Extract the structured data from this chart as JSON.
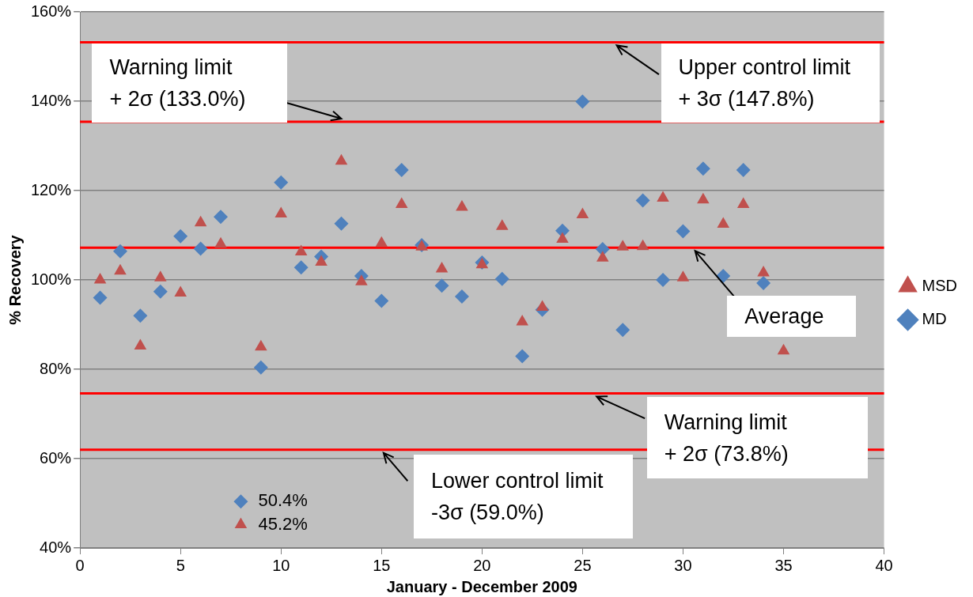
{
  "chart_data": {
    "type": "scatter",
    "xlabel": "January - December 2009",
    "ylabel": "% Recovery",
    "x": [
      1,
      2,
      3,
      4,
      5,
      6,
      7,
      8,
      9,
      10,
      11,
      12,
      13,
      14,
      15,
      16,
      17,
      18,
      19,
      20,
      21,
      22,
      23,
      24,
      25,
      26,
      27,
      28,
      29,
      30,
      31,
      32,
      33,
      34,
      35
    ],
    "series": [
      {
        "name": "MD",
        "color": "#4f81bd",
        "marker": "diamond",
        "values": [
          96.0,
          106.4,
          92.0,
          97.4,
          109.8,
          107.0,
          114.1,
          50.4,
          80.4,
          121.8,
          102.8,
          105.2,
          112.6,
          100.9,
          95.3,
          124.6,
          107.8,
          98.7,
          96.3,
          103.9,
          100.2,
          82.9,
          93.3,
          111.0,
          139.9,
          106.9,
          88.8,
          117.8,
          100.0,
          110.9,
          124.9,
          100.9,
          124.6,
          99.3,
          null
        ],
        "value_labels": [
          null,
          null,
          null,
          null,
          null,
          null,
          null,
          "50.4%",
          null,
          null,
          null,
          null,
          null,
          null,
          null,
          null,
          null,
          null,
          null,
          null,
          null,
          null,
          null,
          null,
          null,
          null,
          null,
          null,
          null,
          null,
          null,
          null,
          null,
          null,
          null
        ]
      },
      {
        "name": "MSD",
        "color": "#c0504d",
        "marker": "triangle",
        "values": [
          100.0,
          102.0,
          85.2,
          100.5,
          97.1,
          112.8,
          108.0,
          45.2,
          85.0,
          114.8,
          106.3,
          104.0,
          126.6,
          99.6,
          108.2,
          116.9,
          107.4,
          102.5,
          116.3,
          103.4,
          112.0,
          90.6,
          93.9,
          109.1,
          114.6,
          104.9,
          107.4,
          107.5,
          118.3,
          100.5,
          117.9,
          112.5,
          116.9,
          101.6,
          84.1
        ],
        "value_labels": [
          null,
          null,
          null,
          null,
          null,
          null,
          null,
          "45.2%",
          null,
          null,
          null,
          null,
          null,
          null,
          null,
          null,
          null,
          null,
          null,
          null,
          null,
          null,
          null,
          null,
          null,
          null,
          null,
          null,
          null,
          null,
          null,
          null,
          null,
          null,
          null
        ]
      }
    ],
    "xlim": [
      0,
      40
    ],
    "xticks": [
      0,
      5,
      10,
      15,
      20,
      25,
      30,
      35,
      40
    ],
    "ylim": [
      40,
      160
    ],
    "yticks": [
      {
        "value": 40,
        "label": "40%"
      },
      {
        "value": 60,
        "label": "60%"
      },
      {
        "value": 80,
        "label": "80%"
      },
      {
        "value": 100,
        "label": "100%"
      },
      {
        "value": 120,
        "label": "120%"
      },
      {
        "value": 140,
        "label": "140%"
      },
      {
        "value": 160,
        "label": "160%"
      }
    ],
    "grid": "y",
    "legend": "right",
    "ref_lines": [
      {
        "axis": "y",
        "value": 153.2,
        "color": "#ff0000"
      },
      {
        "axis": "y",
        "value": 135.4,
        "color": "#ff0000"
      },
      {
        "axis": "y",
        "value": 107.2,
        "color": "#ff0000"
      },
      {
        "axis": "y",
        "value": 74.6,
        "color": "#ff0000"
      },
      {
        "axis": "y",
        "value": 62.0,
        "color": "#ff0000"
      }
    ],
    "annotations": [
      {
        "text": "Upper control limit\n+ 3σ (147.8%)",
        "x": 26.7,
        "y": 153.2
      },
      {
        "text": "Warning limit\n+ 2σ (133.0%)",
        "x": 13.0,
        "y": 135.4
      },
      {
        "text": "Average",
        "x": 30.6,
        "y": 107.2
      },
      {
        "text": "Warning limit\n+ 2σ (73.8%)",
        "x": 25.7,
        "y": 74.6
      },
      {
        "text": "Lower control limit\n-3σ (59.0%)",
        "x": 15.1,
        "y": 62.0
      }
    ]
  }
}
